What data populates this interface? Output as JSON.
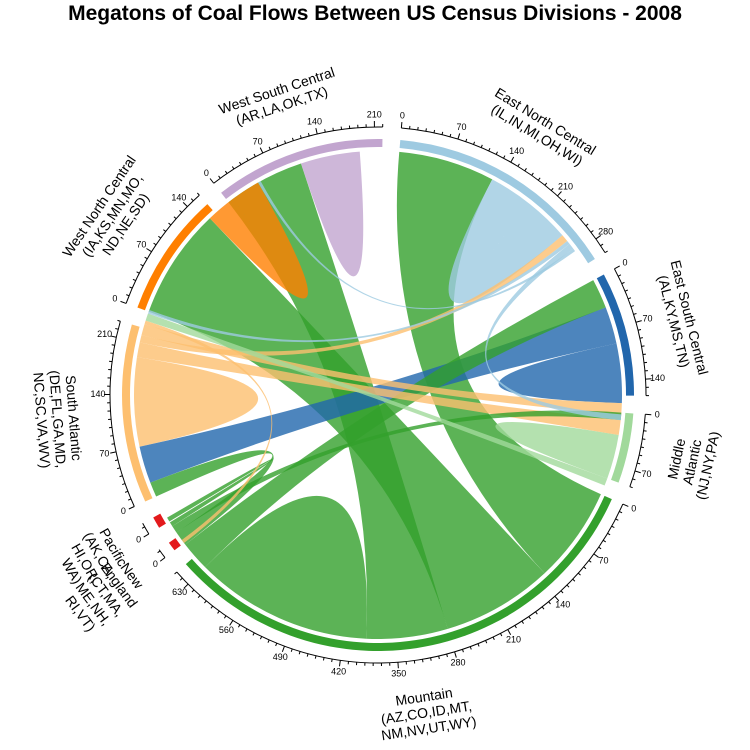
{
  "chart_data": {
    "type": "chord",
    "title": "Megatons of Coal Flows Between US Census Divisions - 2008",
    "tick_step": 70,
    "groups": [
      {
        "id": "ENC",
        "label": [
          "East North Central",
          "(IL,IN,MI,OH,WI)"
        ],
        "total": 300,
        "color": "#9ecae1",
        "ticks": [
          "0",
          "70",
          "140",
          "210",
          "280"
        ]
      },
      {
        "id": "ESC",
        "label": [
          "East South Central",
          "(AL,KY,MS,TN)"
        ],
        "total": 160,
        "color": "#2166ac",
        "ticks": [
          "0",
          "70",
          "140"
        ]
      },
      {
        "id": "MA",
        "label": [
          "Middle",
          "Atlantic",
          "(NJ,NY,PA)"
        ],
        "total": 90,
        "color": "#a1d99b",
        "ticks": [
          "0",
          "70"
        ]
      },
      {
        "id": "MTN",
        "label": [
          "Mountain",
          "(AZ,CO,ID,MT,",
          "NM,NV,UT,WY)"
        ],
        "total": 650,
        "color": "#33a02c",
        "ticks": [
          "0",
          "70",
          "140",
          "210",
          "280",
          "350",
          "420",
          "490",
          "560",
          "630"
        ]
      },
      {
        "id": "NE",
        "label": [
          "New",
          "England",
          "(CT,MA,",
          "ME,NH,",
          "RI,VT)"
        ],
        "total": 12,
        "color": "#e31a1c",
        "ticks": [
          "0"
        ]
      },
      {
        "id": "PAC",
        "label": [
          "Pacific",
          "(AK,CA,",
          "HI,OR,",
          "WA)"
        ],
        "total": 15,
        "color": "#e31a1c",
        "ticks": [
          "0"
        ]
      },
      {
        "id": "SA",
        "label": [
          "South Atlantic",
          "(DE,FL,GA,MD,",
          "NC,SC,VA,WV)"
        ],
        "total": 230,
        "color": "#fdbf6f",
        "ticks": [
          "0",
          "70",
          "140",
          "210"
        ]
      },
      {
        "id": "WNC",
        "label": [
          "West North Central",
          "(IA,KS,MN,MO,",
          "ND,NE,SD)"
        ],
        "total": 160,
        "color": "#ff7f00",
        "ticks": [
          "0",
          "70",
          "140"
        ]
      },
      {
        "id": "WSC",
        "label": [
          "West South Central",
          "(AR,LA,OK,TX)"
        ],
        "total": 220,
        "color": "#c2a5cf",
        "ticks": [
          "0",
          "70",
          "140",
          "210"
        ]
      }
    ],
    "flows": [
      {
        "from": "MTN",
        "to": "ENC",
        "value": 130
      },
      {
        "from": "MTN",
        "to": "WNC",
        "value": 150
      },
      {
        "from": "MTN",
        "to": "WSC",
        "value": 110
      },
      {
        "from": "MTN",
        "to": "MTN",
        "value": 120
      },
      {
        "from": "MTN",
        "to": "ESC",
        "value": 40
      },
      {
        "from": "MTN",
        "to": "SA",
        "value": 20
      },
      {
        "from": "MTN",
        "to": "MA",
        "value": 10
      },
      {
        "from": "MTN",
        "to": "PAC",
        "value": 6
      },
      {
        "from": "ENC",
        "to": "ENC",
        "value": 60
      },
      {
        "from": "WSC",
        "to": "WSC",
        "value": 40
      },
      {
        "from": "WNC",
        "to": "WNC",
        "value": 40
      },
      {
        "from": "ESC",
        "to": "SA",
        "value": 50
      },
      {
        "from": "ESC",
        "to": "ESC",
        "value": 40
      },
      {
        "from": "SA",
        "to": "SA",
        "value": 60
      },
      {
        "from": "SA",
        "to": "MA",
        "value": 20
      },
      {
        "from": "SA",
        "to": "ENC",
        "value": 10
      },
      {
        "from": "SA",
        "to": "ESC",
        "value": 15
      },
      {
        "from": "SA",
        "to": "NE",
        "value": 5
      },
      {
        "from": "MA",
        "to": "MA",
        "value": 30
      },
      {
        "from": "MA",
        "to": "SA",
        "value": 10
      },
      {
        "from": "ENC",
        "to": "SA",
        "value": 5
      },
      {
        "from": "ENC",
        "to": "ESC",
        "value": 8
      },
      {
        "from": "ENC",
        "to": "WNC",
        "value": 4
      }
    ]
  }
}
